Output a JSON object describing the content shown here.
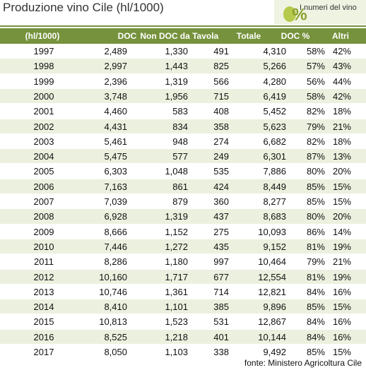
{
  "header": {
    "title": "Produzione vino Cile (hl/1000)",
    "logo_text": "I numeri del vino"
  },
  "table": {
    "columns": [
      "(hl/1000)",
      "DOC",
      "Non DOC",
      "da Tavola",
      "Totale",
      "DOC %",
      "Altri"
    ],
    "rows": [
      [
        "1997",
        "2,489",
        "1,330",
        "491",
        "4,310",
        "58%",
        "42%"
      ],
      [
        "1998",
        "2,997",
        "1,443",
        "825",
        "5,266",
        "57%",
        "43%"
      ],
      [
        "1999",
        "2,396",
        "1,319",
        "566",
        "4,280",
        "56%",
        "44%"
      ],
      [
        "2000",
        "3,748",
        "1,956",
        "715",
        "6,419",
        "58%",
        "42%"
      ],
      [
        "2001",
        "4,460",
        "583",
        "408",
        "5,452",
        "82%",
        "18%"
      ],
      [
        "2002",
        "4,431",
        "834",
        "358",
        "5,623",
        "79%",
        "21%"
      ],
      [
        "2003",
        "5,461",
        "948",
        "274",
        "6,682",
        "82%",
        "18%"
      ],
      [
        "2004",
        "5,475",
        "577",
        "249",
        "6,301",
        "87%",
        "13%"
      ],
      [
        "2005",
        "6,303",
        "1,048",
        "535",
        "7,886",
        "80%",
        "20%"
      ],
      [
        "2006",
        "7,163",
        "861",
        "424",
        "8,449",
        "85%",
        "15%"
      ],
      [
        "2007",
        "7,039",
        "879",
        "360",
        "8,277",
        "85%",
        "15%"
      ],
      [
        "2008",
        "6,928",
        "1,319",
        "437",
        "8,683",
        "80%",
        "20%"
      ],
      [
        "2009",
        "8,666",
        "1,152",
        "275",
        "10,093",
        "86%",
        "14%"
      ],
      [
        "2010",
        "7,446",
        "1,272",
        "435",
        "9,152",
        "81%",
        "19%"
      ],
      [
        "2011",
        "8,286",
        "1,180",
        "997",
        "10,464",
        "79%",
        "21%"
      ],
      [
        "2012",
        "10,160",
        "1,717",
        "677",
        "12,554",
        "81%",
        "19%"
      ],
      [
        "2013",
        "10,746",
        "1,361",
        "714",
        "12,821",
        "84%",
        "16%"
      ],
      [
        "2014",
        "8,410",
        "1,101",
        "385",
        "9,896",
        "85%",
        "15%"
      ],
      [
        "2015",
        "10,813",
        "1,523",
        "531",
        "12,867",
        "84%",
        "16%"
      ],
      [
        "2016",
        "8,525",
        "1,218",
        "401",
        "10,144",
        "84%",
        "16%"
      ],
      [
        "2017",
        "8,050",
        "1,103",
        "338",
        "9,492",
        "85%",
        "15%"
      ]
    ]
  },
  "footer": {
    "source": "fonte: Ministero Agricoltura Cile"
  }
}
